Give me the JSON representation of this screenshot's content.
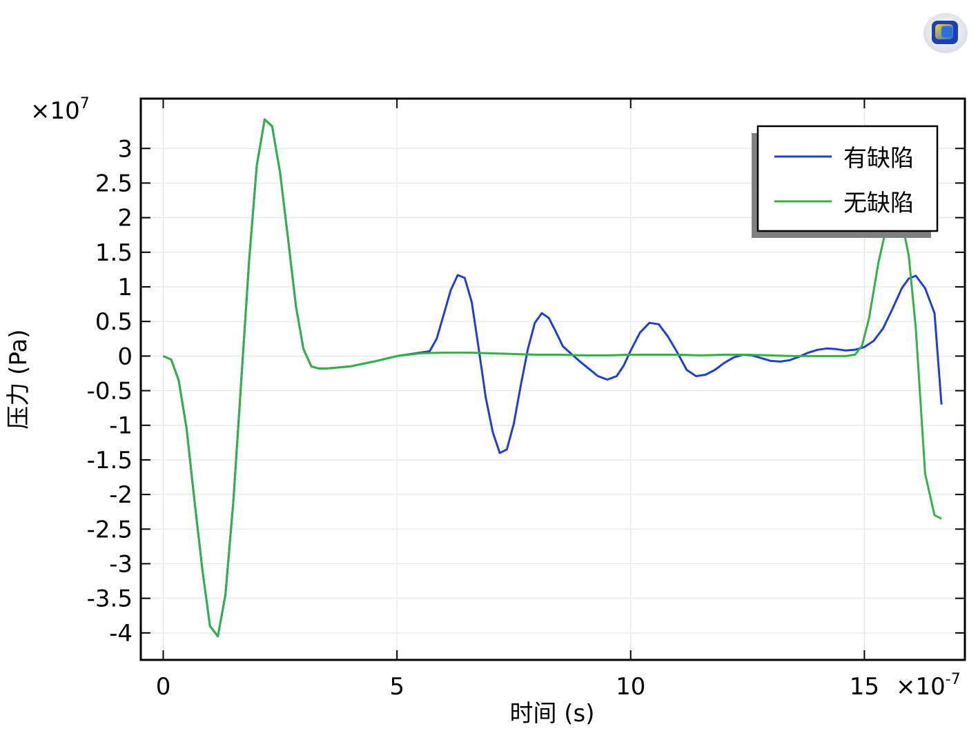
{
  "app_logo_icon": "comsol-logo-icon",
  "chart_data": {
    "type": "line",
    "title": "",
    "xlabel": "时间 (s)",
    "ylabel": "压力 (Pa)",
    "x_multiplier": "×10",
    "x_multiplier_exp": "-7",
    "y_multiplier": "×10",
    "y_multiplier_exp": "7",
    "xlim": [
      -0.48,
      17.15
    ],
    "ylim": [
      -4.39,
      3.72
    ],
    "xticks": [
      0,
      5,
      10,
      15
    ],
    "xtick_labels": [
      "0",
      "5",
      "10",
      "15"
    ],
    "yticks": [
      3,
      2.5,
      2,
      1.5,
      1,
      0.5,
      0,
      -0.5,
      -1,
      -1.5,
      -2,
      -2.5,
      -3,
      -3.5,
      -4
    ],
    "ytick_labels": [
      "3",
      "2.5",
      "2",
      "1.5",
      "1",
      "0.5",
      "0",
      "-0.5",
      "-1",
      "-1.5",
      "-2",
      "-2.5",
      "-3",
      "-3.5",
      "-4"
    ],
    "grid": true,
    "legend_position": "top-right",
    "series": [
      {
        "name": "有缺陷",
        "color": "#1f3fcf",
        "x": [
          0,
          0.17,
          0.33,
          0.5,
          0.67,
          0.84,
          1.0,
          1.17,
          1.33,
          1.5,
          1.67,
          1.84,
          2.0,
          2.17,
          2.33,
          2.5,
          2.67,
          2.84,
          3.0,
          3.17,
          3.33,
          3.5,
          4.0,
          4.5,
          5.0,
          5.5,
          5.7,
          5.85,
          6.0,
          6.15,
          6.3,
          6.45,
          6.6,
          6.75,
          6.9,
          7.05,
          7.2,
          7.35,
          7.5,
          7.65,
          7.8,
          7.95,
          8.1,
          8.25,
          8.4,
          8.55,
          8.7,
          8.9,
          9.1,
          9.3,
          9.5,
          9.7,
          9.85,
          10.0,
          10.2,
          10.4,
          10.6,
          10.8,
          11.0,
          11.2,
          11.4,
          11.6,
          11.8,
          12.0,
          12.2,
          12.4,
          12.6,
          12.8,
          13.0,
          13.2,
          13.4,
          13.6,
          13.8,
          14.0,
          14.2,
          14.4,
          14.6,
          14.8,
          15.0,
          15.2,
          15.4,
          15.6,
          15.8,
          15.95,
          16.1,
          16.3,
          16.5,
          16.65
        ],
        "y": [
          0,
          -0.05,
          -0.35,
          -1.05,
          -2.1,
          -3.1,
          -3.9,
          -4.05,
          -3.45,
          -2.1,
          -0.35,
          1.4,
          2.75,
          3.42,
          3.32,
          2.65,
          1.7,
          0.72,
          0.1,
          -0.15,
          -0.18,
          -0.18,
          -0.15,
          -0.08,
          0,
          0.05,
          0.07,
          0.25,
          0.6,
          0.95,
          1.17,
          1.13,
          0.78,
          0.1,
          -0.6,
          -1.1,
          -1.4,
          -1.35,
          -0.98,
          -0.42,
          0.1,
          0.48,
          0.62,
          0.55,
          0.35,
          0.14,
          0.05,
          -0.07,
          -0.18,
          -0.29,
          -0.34,
          -0.29,
          -0.14,
          0.08,
          0.34,
          0.48,
          0.46,
          0.28,
          0.05,
          -0.2,
          -0.29,
          -0.27,
          -0.2,
          -0.1,
          -0.02,
          0.02,
          0.01,
          -0.03,
          -0.07,
          -0.08,
          -0.06,
          -0.01,
          0.05,
          0.09,
          0.11,
          0.1,
          0.08,
          0.09,
          0.13,
          0.22,
          0.4,
          0.68,
          0.98,
          1.12,
          1.16,
          0.98,
          0.62,
          -0.7
        ]
      },
      {
        "name": "无缺陷",
        "color": "#31b247",
        "x": [
          0,
          0.17,
          0.33,
          0.5,
          0.67,
          0.84,
          1.0,
          1.17,
          1.33,
          1.5,
          1.67,
          1.84,
          2.0,
          2.17,
          2.33,
          2.5,
          2.67,
          2.84,
          3.0,
          3.17,
          3.33,
          3.5,
          4.0,
          4.5,
          5.0,
          5.5,
          6.0,
          6.5,
          7.0,
          7.5,
          8.0,
          8.5,
          9.0,
          9.5,
          10.0,
          10.5,
          11.0,
          11.5,
          12.0,
          12.5,
          13.0,
          13.5,
          14.0,
          14.3,
          14.6,
          14.8,
          14.95,
          15.1,
          15.3,
          15.5,
          15.65,
          15.8,
          15.95,
          16.1,
          16.3,
          16.5,
          16.65
        ],
        "y": [
          0,
          -0.05,
          -0.35,
          -1.05,
          -2.1,
          -3.1,
          -3.9,
          -4.05,
          -3.45,
          -2.1,
          -0.35,
          1.4,
          2.75,
          3.42,
          3.32,
          2.65,
          1.7,
          0.72,
          0.1,
          -0.15,
          -0.18,
          -0.18,
          -0.15,
          -0.08,
          0,
          0.04,
          0.05,
          0.05,
          0.04,
          0.03,
          0.02,
          0.02,
          0.01,
          0.01,
          0.02,
          0.02,
          0.02,
          0.01,
          0.02,
          0.02,
          0.01,
          0,
          0,
          0,
          0,
          0.02,
          0.15,
          0.55,
          1.35,
          1.95,
          2.1,
          1.95,
          1.45,
          0.4,
          -1.7,
          -2.3,
          -2.35
        ]
      }
    ]
  }
}
